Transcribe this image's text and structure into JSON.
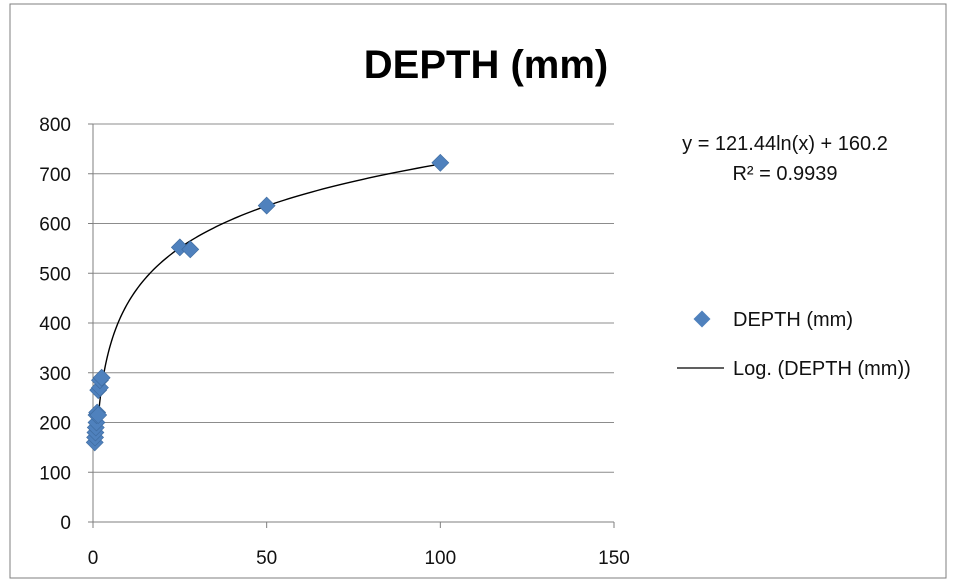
{
  "chart_data": {
    "type": "scatter",
    "title": "DEPTH (mm)",
    "xlabel": "",
    "ylabel": "",
    "xlim": [
      0,
      150
    ],
    "ylim": [
      0,
      800
    ],
    "x_ticks": [
      0,
      50,
      100,
      150
    ],
    "y_ticks": [
      0,
      100,
      200,
      300,
      400,
      500,
      600,
      700,
      800
    ],
    "grid": "horizontal",
    "legend_position": "right",
    "series": [
      {
        "name": "DEPTH (mm)",
        "marker": "diamond",
        "color": "#4F81BD",
        "x": [
          0.5,
          0.6,
          0.7,
          0.8,
          1,
          1,
          1.2,
          1.5,
          1.5,
          2,
          2,
          2.5,
          25,
          28,
          50,
          100
        ],
        "y": [
          160,
          170,
          180,
          190,
          200,
          215,
          220,
          215,
          265,
          270,
          285,
          290,
          552,
          548,
          636,
          722
        ]
      }
    ],
    "trendline": {
      "name": "Log. (DEPTH (mm))",
      "type": "logarithmic",
      "a": 121.44,
      "b": 160.2,
      "x_start": 1,
      "x_end": 100,
      "color": "#000000"
    },
    "annotations": {
      "equation": "y = 121.44ln(x) + 160.2",
      "r_squared": "R² = 0.9939"
    }
  }
}
